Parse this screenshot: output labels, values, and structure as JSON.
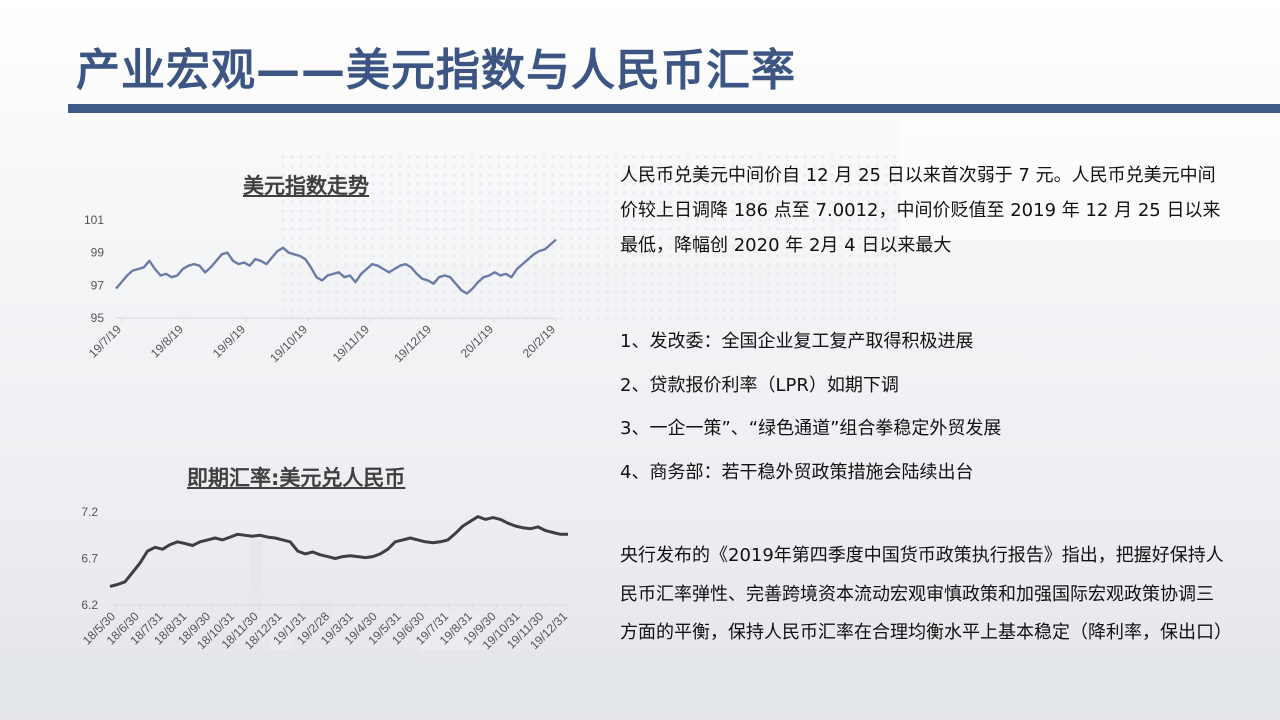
{
  "title": "产业宏观——美元指数与人民币汇率",
  "charts": [
    {
      "type": "line",
      "title": "美元指数走势",
      "color": "#6a7ba6",
      "ylim": [
        95,
        101
      ],
      "yticks": [
        "95",
        "97",
        "99",
        "101"
      ],
      "xticks": [
        "19/7/19",
        "19/8/19",
        "19/9/19",
        "19/10/19",
        "19/11/19",
        "19/12/19",
        "20/1/19",
        "20/2/19"
      ],
      "values": [
        96.8,
        97.2,
        97.6,
        97.9,
        98.0,
        98.1,
        98.5,
        98.0,
        97.6,
        97.7,
        97.5,
        97.6,
        98.0,
        98.2,
        98.3,
        98.2,
        97.8,
        98.1,
        98.5,
        98.9,
        99.0,
        98.5,
        98.3,
        98.4,
        98.2,
        98.6,
        98.5,
        98.3,
        98.7,
        99.1,
        99.3,
        99.0,
        98.9,
        98.8,
        98.6,
        98.1,
        97.5,
        97.3,
        97.6,
        97.7,
        97.8,
        97.5,
        97.6,
        97.2,
        97.7,
        98.0,
        98.3,
        98.2,
        98.0,
        97.8,
        98.0,
        98.2,
        98.3,
        98.1,
        97.7,
        97.4,
        97.3,
        97.1,
        97.5,
        97.6,
        97.5,
        97.1,
        96.7,
        96.5,
        96.8,
        97.2,
        97.5,
        97.6,
        97.8,
        97.6,
        97.7,
        97.5,
        98.0,
        98.3,
        98.6,
        98.9,
        99.1,
        99.2,
        99.5,
        99.8
      ]
    },
    {
      "type": "line",
      "title": "即期汇率:美元兑人民币",
      "color": "#3e3e44",
      "ylim": [
        6.2,
        7.2
      ],
      "yticks": [
        "6.2",
        "6.7",
        "7.2"
      ],
      "xticks": [
        "18/5/30",
        "18/6/30",
        "18/7/31",
        "18/8/31",
        "18/9/30",
        "18/10/31",
        "18/11/30",
        "18/12/31",
        "19/1/31",
        "19/2/28",
        "19/3/31",
        "19/4/30",
        "19/5/31",
        "19/6/30",
        "19/7/31",
        "19/8/31",
        "19/9/30",
        "19/10/31",
        "19/11/30",
        "19/12/31"
      ],
      "values": [
        6.4,
        6.42,
        6.45,
        6.55,
        6.65,
        6.78,
        6.82,
        6.8,
        6.85,
        6.88,
        6.86,
        6.84,
        6.88,
        6.9,
        6.92,
        6.9,
        6.93,
        6.96,
        6.95,
        6.94,
        6.95,
        6.93,
        6.92,
        6.9,
        6.88,
        6.78,
        6.75,
        6.77,
        6.74,
        6.72,
        6.7,
        6.72,
        6.73,
        6.72,
        6.71,
        6.72,
        6.75,
        6.8,
        6.88,
        6.9,
        6.92,
        6.9,
        6.88,
        6.87,
        6.88,
        6.9,
        6.97,
        7.05,
        7.1,
        7.15,
        7.12,
        7.14,
        7.12,
        7.08,
        7.05,
        7.03,
        7.02,
        7.04,
        7.0,
        6.98,
        6.96,
        6.96
      ]
    }
  ],
  "paragraph1": "人民币兑美元中间价自 12 月 25 日以来首次弱于 7 元。人民币兑美元中间价较上日调降 186 点至 7.0012，中间价贬值至 2019 年 12 月 25 日以来最低，降幅创 2020 年 2月 4 日以来最大",
  "list": [
    "1、发改委：全国企业复工复产取得积极进展",
    "2、贷款报价利率（LPR）如期下调",
    "3、一企一策”、“绿色通道”组合拳稳定外贸发展",
    "4、商务部：若干稳外贸政策措施会陆续出台"
  ],
  "paragraph3": "央行发布的《2019年第四季度中国货币政策执行报告》指出，把握好保持人民币汇率弹性、完善跨境资本流动宏观审慎政策和加强国际宏观政策协调三方面的平衡，保持人民币汇率在合理均衡水平上基本稳定（降利率，保出口）",
  "colors": {
    "title": "#3c5582",
    "title_bar": "#3f5a86",
    "axis": "#d9d9d9"
  }
}
